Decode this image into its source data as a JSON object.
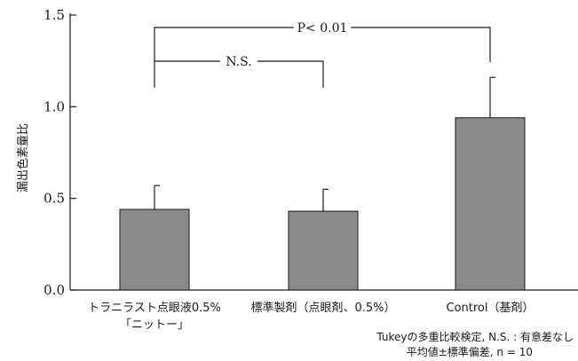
{
  "chart_data": {
    "type": "bar",
    "ylabel": "漏出色素量比",
    "ylim": [
      0,
      1.5
    ],
    "yticks": [
      "0.0",
      "0.5",
      "1.0",
      "1.5"
    ],
    "ytick_values": [
      0,
      0.5,
      1.0,
      1.5
    ],
    "categories": [
      {
        "line1": "トラニラスト点眼液0.5%",
        "line2": "「ニットー」"
      },
      {
        "line1": "標準製剤（点眼剤、0.5%）",
        "line2": ""
      },
      {
        "line1": "Control（基剤）",
        "line2": ""
      }
    ],
    "values": [
      0.44,
      0.43,
      0.94
    ],
    "errors": [
      0.13,
      0.12,
      0.22
    ],
    "bar_color": "#8a8a8a",
    "comparisons": [
      {
        "label": "N.S.",
        "from": 0,
        "to": 1
      },
      {
        "label": "P< 0.01",
        "from": 0,
        "to": 2
      }
    ],
    "footnote_line1": "Tukeyの多重比較検定, N.S. : 有意差なし",
    "footnote_line2": "平均値±標準偏差, n = 10"
  }
}
